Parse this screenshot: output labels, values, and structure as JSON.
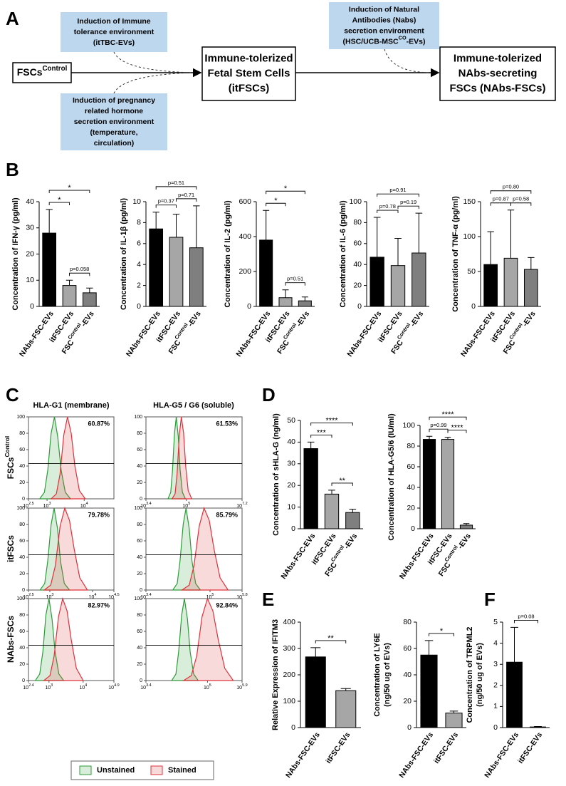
{
  "panel_labels": [
    "A",
    "B",
    "C",
    "D",
    "E",
    "F"
  ],
  "diagram": {
    "boxes": [
      {
        "lines": [
          "Induction of Immune",
          "tolerance environment",
          "(itTBC-EVs)"
        ]
      },
      {
        "lines": [
          "Induction of pregnancy",
          "related hormone",
          "secretion environment",
          "(temperature,",
          "circulation)"
        ]
      },
      {
        "lines": [
          "Induction of Natural",
          "Antibodies (Nabs)",
          "secretion environment",
          [
            "(HSC/UCB-MSC",
            "CO",
            "-EVs)"
          ]
        ]
      }
    ],
    "nodes": [
      {
        "lines": [
          [
            "FSCs",
            "Control"
          ]
        ]
      },
      {
        "lines": [
          "Immune-tolerized",
          "Fetal Stem Cells",
          "(itFSCs)"
        ]
      },
      {
        "lines": [
          "Immune-tolerized",
          "NAbs-secreting",
          "FSCs (NAbs-FSCs)"
        ]
      }
    ]
  },
  "flow": {
    "column_titles": [
      "HLA-G1 (membrane)",
      "HLA-G5 / G6 (soluble)"
    ],
    "row_labels": [
      [
        "FSCs",
        "Control"
      ],
      "itFSCs",
      "NAbs-FSCs"
    ],
    "legend": [
      {
        "name": "Unstained",
        "color": "#2e9b3a"
      },
      {
        "name": "Stained",
        "color": "#e0303a"
      }
    ]
  },
  "chart_data": [
    {
      "type": "area",
      "annotation": "60.87%",
      "xtick_base": "10",
      "xlim": [
        2.5,
        4.8
      ],
      "xticks": [
        2.5,
        3,
        4
      ],
      "ylim": [
        0,
        100
      ],
      "yticks": [
        0,
        20,
        40,
        60,
        80,
        100
      ],
      "series": [
        {
          "color": "#2e9b3a",
          "x": [
            2.8,
            2.93,
            3.02,
            3.11,
            3.2,
            3.29,
            3.38,
            3.49,
            3.63
          ],
          "values": [
            0,
            8,
            35,
            80,
            100,
            75,
            35,
            8,
            0
          ]
        },
        {
          "color": "#e0303a",
          "x": [
            3.11,
            3.25,
            3.35,
            3.45,
            3.55,
            3.65,
            3.75,
            3.87,
            4.03
          ],
          "values": [
            0,
            6,
            30,
            78,
            100,
            80,
            40,
            10,
            0
          ]
        }
      ]
    },
    {
      "type": "area",
      "annotation": "61.53%",
      "xtick_base": "10",
      "xlim": [
        3.4,
        7.2
      ],
      "xticks": [
        3.4,
        5,
        7.2
      ],
      "ylim": [
        0,
        100
      ],
      "yticks": [
        0,
        20,
        40,
        60,
        80,
        100
      ],
      "series": [
        {
          "color": "#2e9b3a",
          "x": [
            4.27,
            4.38,
            4.45,
            4.53,
            4.6,
            4.68,
            4.75,
            4.84,
            4.96
          ],
          "values": [
            0,
            8,
            35,
            80,
            100,
            75,
            35,
            8,
            0
          ]
        },
        {
          "color": "#e0303a",
          "x": [
            4.43,
            4.55,
            4.63,
            4.72,
            4.8,
            4.89,
            4.97,
            5.07,
            5.21
          ],
          "values": [
            0,
            6,
            30,
            78,
            100,
            80,
            40,
            10,
            0
          ]
        }
      ]
    },
    {
      "type": "area",
      "annotation": "79.78%",
      "xtick_base": "10",
      "xlim": [
        2.5,
        4.5
      ],
      "xticks": [
        2.5,
        3,
        4,
        4.5
      ],
      "ylim": [
        0,
        100
      ],
      "yticks": [
        0,
        20,
        40,
        60,
        80,
        100
      ],
      "series": [
        {
          "color": "#2e9b3a",
          "x": [
            2.77,
            2.88,
            2.95,
            3.03,
            3.1,
            3.18,
            3.25,
            3.34,
            3.46
          ],
          "values": [
            0,
            8,
            35,
            80,
            100,
            75,
            35,
            8,
            0
          ]
        },
        {
          "color": "#e0303a",
          "x": [
            2.87,
            3.02,
            3.13,
            3.24,
            3.35,
            3.46,
            3.57,
            3.7,
            3.88
          ],
          "values": [
            0,
            6,
            30,
            78,
            100,
            85,
            50,
            15,
            0
          ]
        }
      ]
    },
    {
      "type": "area",
      "annotation": "85.79%",
      "xtick_base": "10",
      "xlim": [
        3.4,
        5.8
      ],
      "xticks": [
        3.4,
        5,
        5.8
      ],
      "ylim": [
        0,
        100
      ],
      "yticks": [
        0,
        20,
        40,
        60,
        80,
        100
      ],
      "series": [
        {
          "color": "#2e9b3a",
          "x": [
            4.07,
            4.18,
            4.25,
            4.33,
            4.4,
            4.48,
            4.55,
            4.64,
            4.76
          ],
          "values": [
            0,
            8,
            35,
            80,
            100,
            75,
            35,
            8,
            0
          ]
        },
        {
          "color": "#e0303a",
          "x": [
            4.3,
            4.48,
            4.6,
            4.73,
            4.85,
            4.98,
            5.1,
            5.25,
            5.45
          ],
          "values": [
            0,
            6,
            30,
            78,
            100,
            85,
            50,
            15,
            0
          ]
        }
      ]
    },
    {
      "type": "area",
      "annotation": "82.97%",
      "xtick_base": "10",
      "xlim": [
        2.4,
        4.9
      ],
      "xticks": [
        2.4,
        3,
        4,
        4.9
      ],
      "ylim": [
        0,
        100
      ],
      "yticks": [
        0,
        20,
        40,
        60,
        80,
        100
      ],
      "series": [
        {
          "color": "#2e9b3a",
          "x": [
            2.6,
            2.73,
            2.82,
            2.91,
            3.0,
            3.09,
            3.18,
            3.29,
            3.43
          ],
          "values": [
            0,
            8,
            35,
            80,
            100,
            75,
            35,
            8,
            0
          ]
        },
        {
          "color": "#e0303a",
          "x": [
            2.85,
            3.03,
            3.15,
            3.28,
            3.4,
            3.53,
            3.65,
            3.8,
            4.0
          ],
          "values": [
            0,
            6,
            30,
            78,
            100,
            85,
            50,
            15,
            0
          ]
        }
      ]
    },
    {
      "type": "area",
      "annotation": "92.84%",
      "xtick_base": "10",
      "xlim": [
        3.4,
        5.9
      ],
      "xticks": [
        3.4,
        5,
        5.9
      ],
      "ylim": [
        0,
        100
      ],
      "yticks": [
        0,
        20,
        40,
        60,
        80,
        100
      ],
      "series": [
        {
          "color": "#2e9b3a",
          "x": [
            4.07,
            4.18,
            4.25,
            4.33,
            4.4,
            4.48,
            4.55,
            4.64,
            4.76
          ],
          "values": [
            0,
            8,
            35,
            80,
            100,
            75,
            35,
            8,
            0
          ]
        },
        {
          "color": "#e0303a",
          "x": [
            4.38,
            4.58,
            4.72,
            4.86,
            5.0,
            5.14,
            5.28,
            5.45,
            5.67
          ],
          "values": [
            0,
            6,
            30,
            78,
            100,
            85,
            50,
            15,
            0
          ]
        }
      ]
    },
    {
      "type": "bar",
      "ylabel": [
        "Concentration of IFN-γ (pg/ml)"
      ],
      "categories": [
        "NAbs-FSC-EVs",
        "itFSC-EVs",
        [
          "FSC",
          "Control",
          "-EVs"
        ]
      ],
      "values": [
        28,
        8,
        5.2
      ],
      "errors": [
        9,
        2,
        1.8
      ],
      "colors": [
        "#000000",
        "#a6a6a6",
        "#7f7f7f"
      ],
      "ylim": [
        0,
        40
      ],
      "yticks": [
        0,
        10,
        20,
        30,
        40
      ],
      "comparisons": [
        {
          "groups": [
            1,
            2
          ],
          "label": "p=0.058"
        },
        {
          "groups": [
            0,
            1
          ],
          "label": "*"
        },
        {
          "groups": [
            0,
            2
          ],
          "label": "*"
        }
      ]
    },
    {
      "type": "bar",
      "ylabel": [
        "Concentration of IL-1β (pg/ml)"
      ],
      "categories": [
        "NAbs-FSC-EVs",
        "itFSC-EVs",
        [
          "FSC",
          "Control",
          "-EVs"
        ]
      ],
      "values": [
        7.4,
        6.6,
        5.6
      ],
      "errors": [
        1.6,
        2.2,
        4.0
      ],
      "colors": [
        "#000000",
        "#a6a6a6",
        "#7f7f7f"
      ],
      "ylim": [
        0,
        10
      ],
      "yticks": [
        0,
        2,
        4,
        6,
        8,
        10
      ],
      "comparisons": [
        {
          "groups": [
            0,
            1
          ],
          "label": "p=0.37"
        },
        {
          "groups": [
            1,
            2
          ],
          "label": "p=0.71"
        },
        {
          "groups": [
            0,
            2
          ],
          "label": "p=0.51"
        }
      ]
    },
    {
      "type": "bar",
      "ylabel": [
        "Concentration of IL-2 (pg/ml)"
      ],
      "categories": [
        "NAbs-FSC-EVs",
        "itFSC-EVs",
        [
          "FSC",
          "Control",
          "-EVs"
        ]
      ],
      "values": [
        380,
        50,
        32
      ],
      "errors": [
        170,
        45,
        22
      ],
      "colors": [
        "#000000",
        "#a6a6a6",
        "#7f7f7f"
      ],
      "ylim": [
        0,
        600
      ],
      "yticks": [
        0,
        200,
        400,
        600
      ],
      "comparisons": [
        {
          "groups": [
            1,
            2
          ],
          "label": "p=0.51"
        },
        {
          "groups": [
            0,
            1
          ],
          "label": "*"
        },
        {
          "groups": [
            0,
            2
          ],
          "label": "*"
        }
      ]
    },
    {
      "type": "bar",
      "ylabel": [
        "Concentration of IL-6 (pg/ml)"
      ],
      "categories": [
        "NAbs-FSC-EVs",
        "itFSC-EVs",
        [
          "FSC",
          "Control",
          "-EVs"
        ]
      ],
      "values": [
        47,
        39,
        51
      ],
      "errors": [
        38,
        26,
        38
      ],
      "colors": [
        "#000000",
        "#a6a6a6",
        "#7f7f7f"
      ],
      "ylim": [
        0,
        100
      ],
      "yticks": [
        0,
        20,
        40,
        60,
        80,
        100
      ],
      "comparisons": [
        {
          "groups": [
            0,
            1
          ],
          "label": "p=0.78"
        },
        {
          "groups": [
            1,
            2
          ],
          "label": "p=0.19"
        },
        {
          "groups": [
            0,
            2
          ],
          "label": "p=0.91"
        }
      ]
    },
    {
      "type": "bar",
      "ylabel": [
        "Concentration of TNF-α (pg/ml)"
      ],
      "categories": [
        "NAbs-FSC-EVs",
        "itFSC-EVs",
        [
          "FSC",
          "Control",
          "-EVs"
        ]
      ],
      "values": [
        60,
        69,
        53
      ],
      "errors": [
        47,
        69,
        17
      ],
      "colors": [
        "#000000",
        "#a6a6a6",
        "#7f7f7f"
      ],
      "ylim": [
        0,
        150
      ],
      "yticks": [
        0,
        50,
        100,
        150
      ],
      "comparisons": [
        {
          "groups": [
            0,
            1
          ],
          "label": "p=0.87"
        },
        {
          "groups": [
            1,
            2
          ],
          "label": "p=0.58"
        },
        {
          "groups": [
            0,
            2
          ],
          "label": "p=0.80"
        }
      ]
    },
    {
      "type": "bar",
      "ylabel": [
        "Concentration of sHLA-G (ng/ml)"
      ],
      "categories": [
        "NAbs-FSC-EVs",
        "itFSC-EVs",
        [
          "FSC",
          "Control",
          "-EVs"
        ]
      ],
      "values": [
        37,
        16,
        7.5
      ],
      "errors": [
        3,
        1.8,
        1.5
      ],
      "colors": [
        "#000000",
        "#a6a6a6",
        "#7f7f7f"
      ],
      "ylim": [
        0,
        50
      ],
      "yticks": [
        0,
        10,
        20,
        30,
        40,
        50
      ],
      "comparisons": [
        {
          "groups": [
            1,
            2
          ],
          "label": "**"
        },
        {
          "groups": [
            0,
            1
          ],
          "label": "***"
        },
        {
          "groups": [
            0,
            2
          ],
          "label": "****"
        }
      ]
    },
    {
      "type": "bar",
      "ylabel": [
        "Concentration of HLA-G5/6 (IU/ml)"
      ],
      "categories": [
        "NAbs-FSC-EVs",
        "itFSC-EVs",
        [
          "FSC",
          "Control",
          "-EVs"
        ]
      ],
      "values": [
        86.5,
        86.5,
        3.5
      ],
      "errors": [
        3,
        2,
        1.5
      ],
      "colors": [
        "#000000",
        "#a6a6a6",
        "#7f7f7f"
      ],
      "ylim": [
        0,
        100
      ],
      "yticks": [
        0,
        20,
        40,
        60,
        80,
        100
      ],
      "comparisons": [
        {
          "groups": [
            0,
            1
          ],
          "label": "p=0.99"
        },
        {
          "groups": [
            1,
            2
          ],
          "label": "****"
        },
        {
          "groups": [
            0,
            2
          ],
          "label": "****"
        }
      ]
    },
    {
      "type": "bar",
      "ylabel": [
        "Relative Expression of IFITM3"
      ],
      "categories": [
        "NAbs-FSC-EVs",
        "itFSC-EVs"
      ],
      "values": [
        268,
        140
      ],
      "errors": [
        35,
        8
      ],
      "colors": [
        "#000000",
        "#a6a6a6"
      ],
      "ylim": [
        0,
        400
      ],
      "yticks": [
        0,
        100,
        200,
        300,
        400
      ],
      "comparisons": [
        {
          "groups": [
            0,
            1
          ],
          "label": "**"
        }
      ]
    },
    {
      "type": "bar",
      "ylabel": [
        "Concentration of LY6E",
        "(ng/50 ug of EVs)"
      ],
      "categories": [
        "NAbs-FSC-EVs",
        "itFSC-EVs"
      ],
      "values": [
        55,
        11
      ],
      "errors": [
        11,
        1.5
      ],
      "colors": [
        "#000000",
        "#a6a6a6"
      ],
      "ylim": [
        0,
        80
      ],
      "yticks": [
        0,
        20,
        40,
        60,
        80
      ],
      "comparisons": [
        {
          "groups": [
            0,
            1
          ],
          "label": "*"
        }
      ]
    },
    {
      "type": "bar",
      "ylabel": [
        "Concentration of TRPML2",
        "(ng/50 ug of EVs)"
      ],
      "categories": [
        "NAbs-FSC-EVs",
        "itFSC-EVs"
      ],
      "values": [
        3.1,
        0.03
      ],
      "errors": [
        1.65,
        0.02
      ],
      "colors": [
        "#000000",
        "#a6a6a6"
      ],
      "ylim": [
        0,
        5
      ],
      "yticks": [
        0,
        1,
        2,
        3,
        4,
        5
      ],
      "comparisons": [
        {
          "groups": [
            0,
            1
          ],
          "label": "p=0.08"
        }
      ]
    }
  ]
}
